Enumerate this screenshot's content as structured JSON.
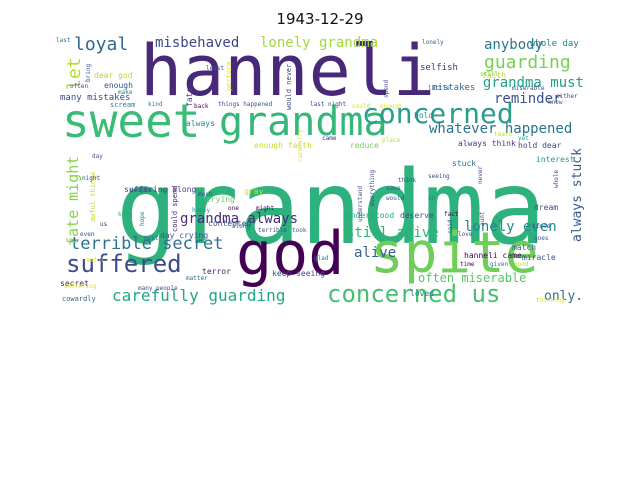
{
  "title": "1943-12-29",
  "colors": {
    "dark_purple": "#440154",
    "purple": "#482878",
    "indigo": "#3e4a89",
    "blue": "#31688e",
    "teal": "#26828e",
    "cyan_green": "#1f9e89",
    "green": "#35b779",
    "light_green": "#6ece58",
    "lime": "#b5de2b",
    "yellow": "#fde725"
  },
  "words": [
    {
      "text": "grandma",
      "color": "#2db27d",
      "weight": 1.0
    },
    {
      "text": "hanneli",
      "color": "#482878",
      "weight": 0.85
    },
    {
      "text": "god",
      "color": "#440154",
      "weight": 0.7
    },
    {
      "text": "spite",
      "color": "#6ece58",
      "weight": 0.7
    },
    {
      "text": "sweet",
      "color": "#3bbb75",
      "weight": 0.55
    },
    {
      "text": "grandma",
      "color": "#35b779",
      "weight": 0.55
    },
    {
      "text": "concerned",
      "color": "#2a9d8c",
      "weight": 0.4
    },
    {
      "text": "concerned us",
      "color": "#46c06f",
      "weight": 0.35
    },
    {
      "text": "suffered",
      "color": "#3e4a89",
      "weight": 0.35
    },
    {
      "text": "loyal",
      "color": "#31688e",
      "weight": 0.28
    },
    {
      "text": "terrible secret",
      "color": "#2c728e",
      "weight": 0.25
    },
    {
      "text": "carefully guarding",
      "color": "#22a884",
      "weight": 0.25
    },
    {
      "text": "misbehaved",
      "color": "#404387",
      "weight": 0.2
    },
    {
      "text": "lonely grandma",
      "color": "#a0da39",
      "weight": 0.2
    },
    {
      "text": "anybody",
      "color": "#2a788e",
      "weight": 0.18
    },
    {
      "text": "guarding",
      "color": "#75d054",
      "weight": 0.22
    },
    {
      "text": "grandma must",
      "color": "#1fa187",
      "weight": 0.18
    },
    {
      "text": "reminder",
      "color": "#3b528b",
      "weight": 0.16
    },
    {
      "text": "whatever happened",
      "color": "#2c728e",
      "weight": 0.17
    },
    {
      "text": "let",
      "color": "#b5de2b",
      "weight": 0.2
    },
    {
      "text": "fate might",
      "color": "#86d549",
      "weight": 0.18
    },
    {
      "text": "grandma always",
      "color": "#472d7b",
      "weight": 0.17
    },
    {
      "text": "still alive",
      "color": "#2fb47c",
      "weight": 0.17
    },
    {
      "text": "lonely even",
      "color": "#24868e",
      "weight": 0.16
    },
    {
      "text": "always stuck",
      "color": "#365c8d",
      "weight": 0.16
    },
    {
      "text": "alive",
      "color": "#355f8d",
      "weight": 0.15
    },
    {
      "text": "often miserable",
      "color": "#54c568",
      "weight": 0.14
    },
    {
      "text": "only.",
      "color": "#2e6f8e",
      "weight": 0.14
    },
    {
      "text": "whole day",
      "color": "#277f8e",
      "weight": 0.09
    },
    {
      "text": "faith",
      "color": "#b5de2b",
      "weight": 0.08
    },
    {
      "text": "selfish",
      "color": "#46337e",
      "weight": 0.08
    },
    {
      "text": "mistakes",
      "color": "#31688e",
      "weight": 0.08
    },
    {
      "text": "many mistakes",
      "color": "#3e4a89",
      "weight": 0.08
    },
    {
      "text": "enough",
      "color": "#3b528b",
      "weight": 0.07
    },
    {
      "text": "dear god",
      "color": "#addc30",
      "weight": 0.07
    },
    {
      "text": "fate",
      "color": "#3e4a89",
      "weight": 0.07
    },
    {
      "text": "always",
      "color": "#23898e",
      "weight": 0.07
    },
    {
      "text": "enough faith",
      "color": "#c8e020",
      "weight": 0.08
    },
    {
      "text": "reduce",
      "color": "#70cf57",
      "weight": 0.08
    },
    {
      "text": "always think",
      "color": "#443983",
      "weight": 0.08
    },
    {
      "text": "hold dear",
      "color": "#3f4788",
      "weight": 0.07
    },
    {
      "text": "hold",
      "color": "#238a8d",
      "weight": 0.07
    },
    {
      "text": "stuck",
      "color": "#2d708e",
      "weight": 0.07
    },
    {
      "text": "interest",
      "color": "#1e9b8a",
      "weight": 0.07
    },
    {
      "text": "dream",
      "color": "#3c4f8a",
      "weight": 0.07
    },
    {
      "text": "suffering along",
      "color": "#414487",
      "weight": 0.08
    },
    {
      "text": "crying",
      "color": "#6ccd5a",
      "weight": 0.07
    },
    {
      "text": "day crying",
      "color": "#3b528b",
      "weight": 0.08
    },
    {
      "text": "understood",
      "color": "#22a884",
      "weight": 0.07
    },
    {
      "text": "deserve",
      "color": "#3d4e8a",
      "weight": 0.07
    },
    {
      "text": "hanneli came",
      "color": "#46075a",
      "weight": 0.07
    },
    {
      "text": "match",
      "color": "#31688e",
      "weight": 0.07
    },
    {
      "text": "miracle",
      "color": "#3b528b",
      "weight": 0.07
    },
    {
      "text": "secret",
      "color": "#482475",
      "weight": 0.07
    },
    {
      "text": "terror",
      "color": "#481a6c",
      "weight": 0.07
    },
    {
      "text": "keep seeing",
      "color": "#3e4a89",
      "weight": 0.07
    },
    {
      "text": "loved",
      "color": "#297b8e",
      "weight": 0.07
    },
    {
      "text": "cowardly",
      "color": "#33638d",
      "weight": 0.06
    },
    {
      "text": "gray",
      "color": "#d8e219",
      "weight": 0.06
    },
    {
      "text": "contented",
      "color": "#3b528b",
      "weight": 0.06
    },
    {
      "text": "could spend",
      "color": "#481f70",
      "weight": 0.06
    },
    {
      "text": "awful things",
      "color": "#c0df25",
      "weight": 0.06
    },
    {
      "text": "would never",
      "color": "#3f4889",
      "weight": 0.06
    },
    {
      "text": "perform",
      "color": "#e5e419",
      "weight": 0.05
    },
    {
      "text": "scream",
      "color": "#2a788e",
      "weight": 0.05
    },
    {
      "text": "kind",
      "color": "#26828e",
      "weight": 0.04
    },
    {
      "text": "back",
      "color": "#440154",
      "weight": 0.04
    },
    {
      "text": "things happened",
      "color": "#3b528b",
      "weight": 0.04
    },
    {
      "text": "last night",
      "color": "#404688",
      "weight": 0.04
    },
    {
      "text": "could",
      "color": "#c2df23",
      "weight": 0.04
    },
    {
      "text": "enough",
      "color": "#e7e419",
      "weight": 0.04
    },
    {
      "text": "little",
      "color": "#31688e",
      "weight": 0.04
    },
    {
      "text": "miserable",
      "color": "#3b528b",
      "weight": 0.04
    },
    {
      "text": "still",
      "color": "#7ad151",
      "weight": 0.04
    },
    {
      "text": "lonely",
      "color": "#31688e",
      "weight": 0.04
    },
    {
      "text": "last",
      "color": "#2c728e",
      "weight": 0.04
    },
    {
      "text": "bring",
      "color": "#3b528b",
      "weight": 0.04
    },
    {
      "text": "often",
      "color": "#3e4a89",
      "weight": 0.04
    },
    {
      "text": "make",
      "color": "#25848e",
      "weight": 0.04
    },
    {
      "text": "came",
      "color": "#482878",
      "weight": 0.04
    },
    {
      "text": "place",
      "color": "#b8de29",
      "weight": 0.04
    },
    {
      "text": "might",
      "color": "#440154",
      "weight": 0.04
    },
    {
      "text": "people",
      "color": "#3b528b",
      "weight": 0.04
    },
    {
      "text": "happy",
      "color": "#20928c",
      "weight": 0.04
    },
    {
      "text": "keep",
      "color": "#27ad81",
      "weight": 0.04
    },
    {
      "text": "night",
      "color": "#404688",
      "weight": 0.04
    },
    {
      "text": "day",
      "color": "#3b528b",
      "weight": 0.04
    },
    {
      "text": "us",
      "color": "#482878",
      "weight": 0.04
    },
    {
      "text": "even",
      "color": "#3b528b",
      "weight": 0.04
    },
    {
      "text": "must",
      "color": "#31688e",
      "weight": 0.04
    },
    {
      "text": "awful",
      "color": "#e5e419",
      "weight": 0.04
    },
    {
      "text": "hope",
      "color": "#25848e",
      "weight": 0.04
    },
    {
      "text": "much",
      "color": "#3e4a89",
      "weight": 0.04
    },
    {
      "text": "one",
      "color": "#440154",
      "weight": 0.04
    },
    {
      "text": "along",
      "color": "#3b528b",
      "weight": 0.04
    },
    {
      "text": "terrible",
      "color": "#3e4a89",
      "weight": 0.04
    },
    {
      "text": "took",
      "color": "#31688e",
      "weight": 0.04
    },
    {
      "text": "glad",
      "color": "#26828e",
      "weight": 0.04
    },
    {
      "text": "save",
      "color": "#31688e",
      "weight": 0.04
    },
    {
      "text": "would",
      "color": "#3b528b",
      "weight": 0.04
    },
    {
      "text": "oh",
      "color": "#26828e",
      "weight": 0.04
    },
    {
      "text": "love",
      "color": "#3e4a89",
      "weight": 0.04
    },
    {
      "text": "time",
      "color": "#440154",
      "weight": 0.04
    },
    {
      "text": "given",
      "color": "#31688e",
      "weight": 0.04
    },
    {
      "text": "good",
      "color": "#b5de2b",
      "weight": 0.04
    },
    {
      "text": "since",
      "color": "#3e4a89",
      "weight": 0.04
    },
    {
      "text": "goes",
      "color": "#3b528b",
      "weight": 0.04
    },
    {
      "text": "fact",
      "color": "#440154",
      "weight": 0.04
    },
    {
      "text": "said",
      "color": "#3b528b",
      "weight": 0.04
    },
    {
      "text": "yet",
      "color": "#1f9e89",
      "weight": 0.04
    },
    {
      "text": "tears",
      "color": "#b5de2b",
      "weight": 0.04
    },
    {
      "text": "think",
      "color": "#3b528b",
      "weight": 0.04
    },
    {
      "text": "seeing",
      "color": "#3e4a89",
      "weight": 0.04
    },
    {
      "text": "matter",
      "color": "#31688e",
      "weight": 0.04
    },
    {
      "text": "many people",
      "color": "#3b528b",
      "weight": 0.04
    },
    {
      "text": "suffering",
      "color": "#e5e419",
      "weight": 0.04
    },
    {
      "text": "thinking",
      "color": "#e5e419",
      "weight": 0.04
    },
    {
      "text": "either",
      "color": "#3e4a89",
      "weight": 0.04
    },
    {
      "text": "know",
      "color": "#31688e",
      "weight": 0.04
    },
    {
      "text": "whole",
      "color": "#3b528b",
      "weight": 0.04
    },
    {
      "text": "everything",
      "color": "#3e4a89",
      "weight": 0.04
    },
    {
      "text": "understand",
      "color": "#3b528b",
      "weight": 0.04
    },
    {
      "text": "carefully",
      "color": "#e5e419",
      "weight": 0.04
    },
    {
      "text": "spend",
      "color": "#3e4a89",
      "weight": 0.04
    },
    {
      "text": "never",
      "color": "#3b528b",
      "weight": 0.04
    },
    {
      "text": "aunt",
      "color": "#3e4a89",
      "weight": 0.04
    },
    {
      "text": "least",
      "color": "#3b528b",
      "weight": 0.04
    }
  ]
}
